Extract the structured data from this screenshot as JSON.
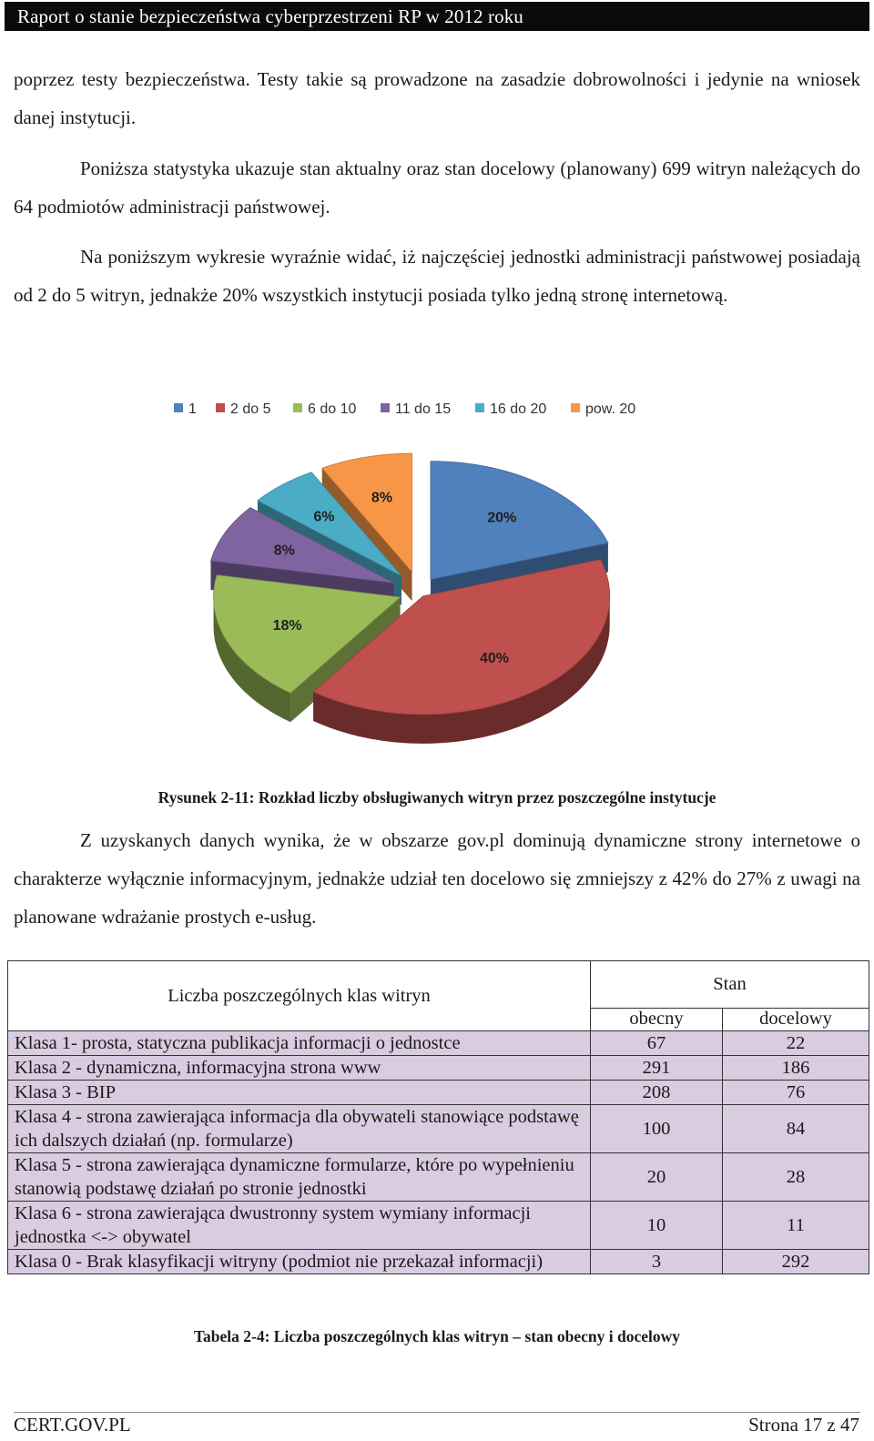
{
  "header": {
    "title": "Raport o stanie bezpieczeństwa cyberprzestrzeni RP w 2012 roku"
  },
  "paragraphs": {
    "p1": "poprzez testy bezpieczeństwa. Testy takie są prowadzone na zasadzie dobrowolności i jedynie na wniosek danej instytucji.",
    "p2": "Poniższa statystyka ukazuje stan aktualny oraz stan docelowy (planowany) 699 witryn należących do 64 podmiotów administracji państwowej.",
    "p3": "Na poniższym wykresie wyraźnie widać, iż najczęściej jednostki administracji państwowej posiadają od 2 do 5 witryn, jednakże 20% wszystkich instytucji posiada tylko jedną stronę internetową.",
    "p4": "Z uzyskanych danych wynika, że  w obszarze gov.pl dominują dynamiczne strony internetowe o charakterze wyłącznie informacyjnym, jednakże udział ten docelowo się zmniejszy z 42% do 27% z uwagi na planowane wdrażanie prostych e-usług."
  },
  "chart_data": {
    "type": "pie",
    "categories": [
      "1",
      "2 do 5",
      "6 do 10",
      "11 do 15",
      "16 do 20",
      "pow. 20"
    ],
    "values": [
      20,
      40,
      18,
      8,
      6,
      8
    ],
    "labels": [
      "20%",
      "40%",
      "18%",
      "8%",
      "6%",
      "8%"
    ],
    "colors": [
      "#4f81bd",
      "#c0504d",
      "#9bbb59",
      "#8064a2",
      "#4bacc6",
      "#f79646"
    ],
    "legend_position": "top",
    "style": "3d-exploded"
  },
  "captions": {
    "figure": "Rysunek 2-11: Rozkład liczby obsługiwanych witryn przez poszczególne instytucje",
    "table": "Tabela 2-4: Liczba poszczególnych klas witryn – stan obecny i docelowy"
  },
  "table": {
    "header_main": "Liczba poszczególnych klas witryn",
    "header_group": "Stan",
    "col_current": "obecny",
    "col_target": "docelowy",
    "rows": [
      {
        "label": "Klasa 1- prosta, statyczna publikacja informacji o jednostce",
        "current": "67",
        "target": "22"
      },
      {
        "label": "Klasa 2 - dynamiczna, informacyjna strona www",
        "current": "291",
        "target": "186"
      },
      {
        "label": "Klasa 3 - BIP",
        "current": "208",
        "target": "76"
      },
      {
        "label": "Klasa 4 - strona zawierająca informacja dla obywateli stanowiące podstawę ich dalszych działań (np. formularze)",
        "current": "100",
        "target": "84"
      },
      {
        "label": "Klasa 5 - strona zawierająca dynamiczne formularze, które po wypełnieniu stanowią podstawę działań po stronie jednostki",
        "current": "20",
        "target": "28"
      },
      {
        "label": "Klasa 6 - strona zawierająca dwustronny system wymiany informacji jednostka <-> obywatel",
        "current": "10",
        "target": "11"
      },
      {
        "label": "Klasa 0 - Brak klasyfikacji witryny (podmiot nie przekazał informacji)",
        "current": "3",
        "target": "292"
      }
    ]
  },
  "footer": {
    "left": "CERT.GOV.PL",
    "right": "Strona 17 z 47"
  }
}
